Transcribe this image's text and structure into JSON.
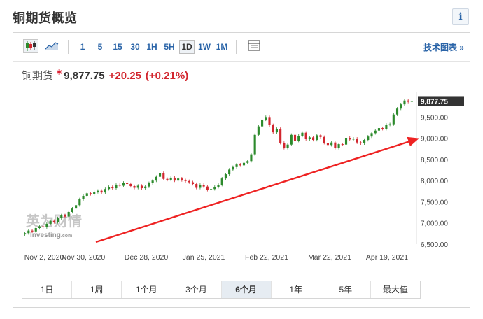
{
  "header": {
    "title": "铜期货概览",
    "info_label": "i"
  },
  "toolbar": {
    "timeframes": [
      "1",
      "5",
      "15",
      "30",
      "1H",
      "5H",
      "1D",
      "1W",
      "1M"
    ],
    "active_timeframe": "1D",
    "tech_chart_label": "技术图表 »"
  },
  "quote": {
    "name": "铜期货",
    "star": "✱",
    "price": "9,877.75",
    "change": "+20.25",
    "change_pct": "(+0.21%)"
  },
  "watermark": {
    "brand": "英为财情",
    "sub": "Investing",
    "sub_suffix": ".com"
  },
  "colors": {
    "up": "#2c8a2c",
    "down": "#d2262e",
    "link": "#2a64a8",
    "arrow": "#ee2222"
  },
  "ranges": [
    "1日",
    "1周",
    "1个月",
    "3个月",
    "6个月",
    "1年",
    "5年",
    "最大值"
  ],
  "active_range": "6个月",
  "chart_data": {
    "type": "candlestick",
    "x_tick_labels": [
      "Nov 2, 2020",
      "Nov 30, 2020",
      "Dec 28, 2020",
      "Jan 25, 2021",
      "Feb 22, 2021",
      "Mar 22, 2021",
      "Apr 19, 2021"
    ],
    "y_tick_labels": [
      "9,500.00",
      "9,000.00",
      "8,500.00",
      "8,000.00",
      "7,500.00",
      "7,000.00",
      "6,500.00"
    ],
    "ylim": [
      6500,
      10100
    ],
    "last_price_label": "9,877.75",
    "last_price": 9877.75,
    "closes": [
      6760,
      6820,
      6800,
      6880,
      6920,
      6900,
      6980,
      7050,
      7020,
      7110,
      7180,
      7150,
      7260,
      7340,
      7420,
      7560,
      7640,
      7700,
      7680,
      7730,
      7760,
      7720,
      7800,
      7850,
      7820,
      7900,
      7880,
      7950,
      7920,
      7870,
      7830,
      7880,
      7820,
      7860,
      7940,
      8000,
      8090,
      8180,
      8040,
      8020,
      8070,
      8000,
      8050,
      8010,
      7990,
      7960,
      7920,
      7830,
      7900,
      7860,
      7780,
      7800,
      7850,
      7900,
      8050,
      8150,
      8260,
      8320,
      8380,
      8360,
      8420,
      8460,
      8620,
      9080,
      9280,
      9440,
      9500,
      9310,
      9140,
      9220,
      8890,
      8770,
      8850,
      9080,
      8940,
      9060,
      9130,
      8980,
      9020,
      8960,
      9070,
      9030,
      8890,
      8840,
      8900,
      8770,
      8860,
      8850,
      9010,
      8970,
      8990,
      8900,
      8880,
      8960,
      9040,
      9120,
      9180,
      9240,
      9220,
      9320,
      9330,
      9560,
      9700,
      9800,
      9890,
      9860,
      9877.75
    ],
    "trend_arrow": {
      "from": [
        0.1,
        6550
      ],
      "to": [
        1.0,
        9000
      ]
    }
  }
}
